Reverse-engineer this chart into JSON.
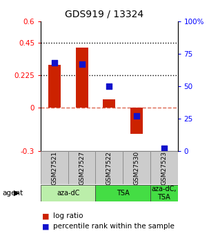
{
  "title": "GDS919 / 13324",
  "samples": [
    "GSM27521",
    "GSM27527",
    "GSM27522",
    "GSM27530",
    "GSM27523"
  ],
  "log_ratio": [
    0.3,
    0.42,
    0.06,
    -0.18,
    0.0
  ],
  "percentile_rank": [
    68,
    67,
    50,
    27,
    2
  ],
  "ylim_left": [
    -0.3,
    0.6
  ],
  "ylim_right": [
    0,
    100
  ],
  "yticks_left": [
    -0.3,
    0.0,
    0.225,
    0.45,
    0.6
  ],
  "ytick_labels_left": [
    "-0.3",
    "0",
    "0.225",
    "0.45",
    "0.6"
  ],
  "yticks_right": [
    0,
    25,
    50,
    75,
    100
  ],
  "ytick_labels_right": [
    "0",
    "25",
    "50",
    "75",
    "100%"
  ],
  "hlines": [
    0.45,
    0.225
  ],
  "bar_color": "#cc2200",
  "dot_color": "#1111cc",
  "agent_groups": [
    {
      "label": "aza-dC",
      "start": 0,
      "end": 2,
      "color": "#bbeeaa"
    },
    {
      "label": "TSA",
      "start": 2,
      "end": 4,
      "color": "#44dd44"
    },
    {
      "label": "aza-dC,\nTSA",
      "start": 4,
      "end": 5,
      "color": "#44dd44"
    }
  ],
  "legend_labels": [
    "log ratio",
    "percentile rank within the sample"
  ],
  "background_color": "#ffffff",
  "bar_width": 0.45,
  "dot_size": 30
}
